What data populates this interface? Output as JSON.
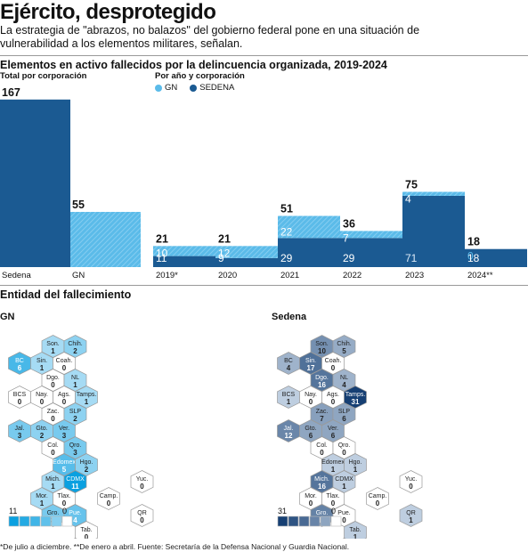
{
  "header": {
    "title": "Ejército, desprotegido",
    "subtitle": "La estrategia de \"abrazos, no balazos\" del gobierno federal pone en una situación de vulnerabilidad a los elementos militares, señalan."
  },
  "colors": {
    "gn": "#5bbbe9",
    "sedena": "#1b5a92",
    "sedena_dark": "#0f3f73"
  },
  "chart_data": [
    {
      "type": "bar",
      "title": "Elementos en activo fallecidos  por la delincuencia organizada, 2019-2024",
      "subtitle": "Total por corporación",
      "categories": [
        "Sedena",
        "GN"
      ],
      "values": [
        167,
        55
      ]
    },
    {
      "type": "bar",
      "stacked": true,
      "subtitle": "Por año y corporación",
      "categories": [
        "2019*",
        "2020",
        "2021",
        "2022",
        "2023",
        "2024**"
      ],
      "totals": [
        21,
        21,
        51,
        36,
        75,
        18
      ],
      "series": [
        {
          "name": "SEDENA",
          "values": [
            11,
            9,
            29,
            29,
            71,
            18
          ]
        },
        {
          "name": "GN",
          "values": [
            10,
            12,
            22,
            7,
            4,
            0
          ]
        }
      ],
      "legend": [
        "GN",
        "SEDENA"
      ]
    }
  ],
  "maps": {
    "section_title": "Entidad del fallecimiento",
    "gn": {
      "title": "GN",
      "max": 11,
      "scale_max_label": "11",
      "scale_min_label": "0",
      "states": [
        {
          "n": "Son.",
          "v": 1
        },
        {
          "n": "Chih.",
          "v": 2
        },
        {
          "n": "BC",
          "v": 6
        },
        {
          "n": "Sin.",
          "v": 1
        },
        {
          "n": "Coah.",
          "v": 0
        },
        {
          "n": "Dgo.",
          "v": 0
        },
        {
          "n": "NL",
          "v": 1
        },
        {
          "n": "BCS",
          "v": 0
        },
        {
          "n": "Nay.",
          "v": 0
        },
        {
          "n": "Ags.",
          "v": 0
        },
        {
          "n": "Tamps.",
          "v": 1
        },
        {
          "n": "Zac.",
          "v": 0
        },
        {
          "n": "SLP",
          "v": 2
        },
        {
          "n": "Jal.",
          "v": 3
        },
        {
          "n": "Gto.",
          "v": 2
        },
        {
          "n": "Ver.",
          "v": 3
        },
        {
          "n": "Col.",
          "v": 0
        },
        {
          "n": "Qro.",
          "v": 3
        },
        {
          "n": "Edomex",
          "v": 5
        },
        {
          "n": "Hgo.",
          "v": 2
        },
        {
          "n": "Mich.",
          "v": 1
        },
        {
          "n": "CDMX",
          "v": 11
        },
        {
          "n": "Yuc.",
          "v": 0
        },
        {
          "n": "Mor.",
          "v": 1
        },
        {
          "n": "Tlax.",
          "v": 0
        },
        {
          "n": "Camp.",
          "v": 0
        },
        {
          "n": "Gro.",
          "v": 3
        },
        {
          "n": "Pue.",
          "v": 4
        },
        {
          "n": "QR",
          "v": 0
        },
        {
          "n": "Tab.",
          "v": 0
        },
        {
          "n": "Chis.",
          "v": 1
        },
        {
          "n": "Oax.",
          "v": 2
        }
      ]
    },
    "sedena": {
      "title": "Sedena",
      "max": 31,
      "scale_max_label": "31",
      "scale_min_label": "0",
      "states": [
        {
          "n": "Son.",
          "v": 10
        },
        {
          "n": "Chih.",
          "v": 5
        },
        {
          "n": "BC",
          "v": 4
        },
        {
          "n": "Sin.",
          "v": 17
        },
        {
          "n": "Coah.",
          "v": 0
        },
        {
          "n": "Dgo.",
          "v": 16
        },
        {
          "n": "NL",
          "v": 4
        },
        {
          "n": "BCS",
          "v": 1
        },
        {
          "n": "Nay.",
          "v": 0
        },
        {
          "n": "Ags.",
          "v": 0
        },
        {
          "n": "Tamps.",
          "v": 31
        },
        {
          "n": "Zac.",
          "v": 7
        },
        {
          "n": "SLP",
          "v": 6
        },
        {
          "n": "Jal.",
          "v": 12
        },
        {
          "n": "Gto.",
          "v": 6
        },
        {
          "n": "Ver.",
          "v": 6
        },
        {
          "n": "Col.",
          "v": 0
        },
        {
          "n": "Qro.",
          "v": 0
        },
        {
          "n": "Edomex",
          "v": 1
        },
        {
          "n": "Hgo.",
          "v": 1
        },
        {
          "n": "Mich.",
          "v": 16
        },
        {
          "n": "CDMX",
          "v": 1
        },
        {
          "n": "Yuc.",
          "v": 0
        },
        {
          "n": "Mor.",
          "v": 0
        },
        {
          "n": "Tlax.",
          "v": 0
        },
        {
          "n": "Camp.",
          "v": 0
        },
        {
          "n": "Gro.",
          "v": 13
        },
        {
          "n": "Pue.",
          "v": 0
        },
        {
          "n": "QR",
          "v": 1
        },
        {
          "n": "Tab.",
          "v": 1
        },
        {
          "n": "Chis.",
          "v": 4
        },
        {
          "n": "Oax.",
          "v": 3
        }
      ]
    }
  },
  "footnote": "*De julio a diciembre. **De enero a abril. Fuente: Secretaría de la Defensa Nacional y Guardia Nacional."
}
